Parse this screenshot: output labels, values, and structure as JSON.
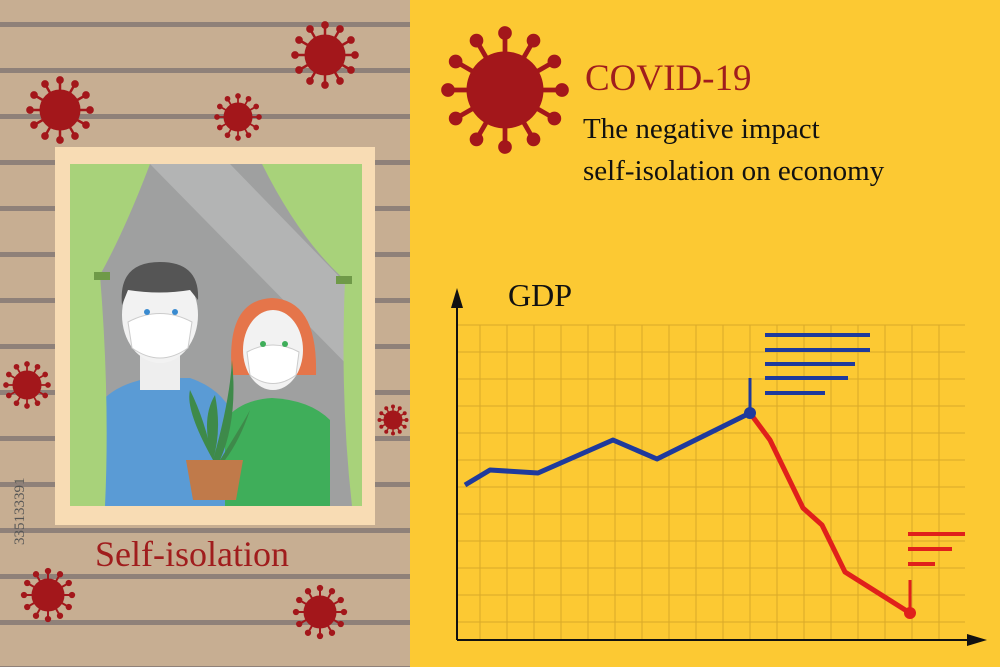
{
  "header": {
    "title": "COVID-19",
    "subtitle_lines": [
      "The negative impact",
      "self-isolation on economy"
    ]
  },
  "chart_label": "GDP",
  "window_caption": "Self-isolation",
  "stock_id": "335133391"
}
